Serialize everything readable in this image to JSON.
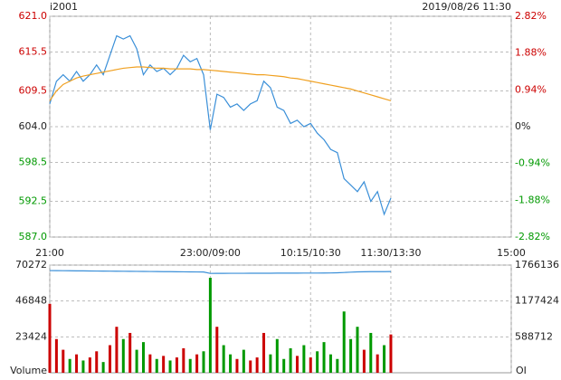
{
  "chart_data": {
    "type": "intraday",
    "title": "i2001",
    "subtitle": "2019/08/26 11:30",
    "x": [
      0,
      5,
      10,
      15,
      20,
      25,
      30,
      35,
      40,
      45,
      50,
      55,
      60,
      65,
      70,
      75,
      80,
      85,
      90,
      95,
      100,
      105,
      110,
      115,
      120,
      125,
      130,
      135,
      140,
      145,
      150,
      155,
      160,
      165,
      170,
      175,
      180,
      185,
      190,
      195,
      200,
      205,
      210,
      215,
      220,
      225,
      230,
      235,
      240,
      245,
      250,
      255
    ],
    "xlim": [
      0,
      345
    ],
    "xticks": [
      {
        "value": 0,
        "label": "21:00"
      },
      {
        "value": 120,
        "label": "23:00/09:00"
      },
      {
        "value": 195,
        "label": "10:15/10:30"
      },
      {
        "value": 255,
        "label": "11:30/13:30"
      },
      {
        "value": 345,
        "label": "15:00"
      }
    ],
    "ylim": [
      587,
      621
    ],
    "yticks": [
      {
        "value": 621,
        "label": "621.0"
      },
      {
        "value": 615.5,
        "label": "615.5"
      },
      {
        "value": 609.5,
        "label": "609.5"
      },
      {
        "value": 604,
        "label": "604.0"
      },
      {
        "value": 598.5,
        "label": "598.5"
      },
      {
        "value": 592.5,
        "label": "592.5"
      },
      {
        "value": 587,
        "label": "587.0"
      }
    ],
    "y2lim": [
      -2.82,
      2.82
    ],
    "y2ticks": [
      {
        "value": 2.82,
        "label": "2.82%"
      },
      {
        "value": 1.88,
        "label": "1.88%"
      },
      {
        "value": 0.94,
        "label": "0.94%"
      },
      {
        "value": 0,
        "label": "0%"
      },
      {
        "value": -0.94,
        "label": "-0.94%"
      },
      {
        "value": -1.88,
        "label": "-1.88%"
      },
      {
        "value": -2.82,
        "label": "-2.82%"
      }
    ],
    "up_color": "#cc0000",
    "down_color": "#009900",
    "grid": true,
    "series": [
      {
        "name": "Price",
        "color": "#3a8fd8",
        "values": [
          607.5,
          611,
          612,
          611,
          612.5,
          611,
          612,
          613.5,
          612,
          615,
          618,
          617.5,
          618,
          616,
          612,
          613.5,
          612.5,
          613,
          612,
          613,
          615,
          614,
          614.5,
          612,
          603.5,
          609,
          608.5,
          607,
          607.5,
          606.5,
          607.5,
          608,
          611,
          610,
          607,
          606.5,
          604.5,
          605,
          604,
          604.5,
          603,
          602,
          600.5,
          600,
          596,
          595,
          594,
          595.5,
          592.5,
          594,
          590.5,
          593
        ]
      },
      {
        "name": "Average",
        "color": "#f0a020",
        "values": [
          608,
          609.5,
          610.5,
          611,
          611.5,
          611.8,
          612,
          612.2,
          612.4,
          612.6,
          612.8,
          613,
          613.1,
          613.2,
          613.2,
          613.1,
          613,
          613,
          612.9,
          612.9,
          612.9,
          612.9,
          612.8,
          612.8,
          612.7,
          612.6,
          612.5,
          612.4,
          612.3,
          612.2,
          612.1,
          612,
          612,
          611.9,
          611.8,
          611.7,
          611.5,
          611.4,
          611.2,
          611,
          610.8,
          610.6,
          610.4,
          610.2,
          610,
          609.8,
          609.5,
          609.2,
          608.9,
          608.6,
          608.3,
          608
        ]
      }
    ],
    "volume": {
      "ylabel": "Volume",
      "ylim": [
        0,
        70272
      ],
      "yticks": [
        70272,
        46848,
        23424
      ],
      "values": [
        45000,
        22000,
        15000,
        9000,
        12000,
        8000,
        10000,
        14000,
        7000,
        18000,
        30000,
        22000,
        26000,
        15000,
        20000,
        12000,
        9000,
        11000,
        8000,
        10000,
        16000,
        9000,
        12000,
        14000,
        62000,
        30000,
        18000,
        12000,
        9000,
        15000,
        8000,
        10000,
        26000,
        12000,
        22000,
        9000,
        16000,
        11000,
        18000,
        10000,
        14000,
        20000,
        12000,
        9000,
        40000,
        22000,
        30000,
        15000,
        26000,
        12000,
        18000,
        25000
      ]
    },
    "open_interest": {
      "ylabel": "OI",
      "color": "#3a8fd8",
      "ylim": [
        0,
        1766136
      ],
      "yticks": [
        1766136,
        1177424,
        588712
      ],
      "values": [
        1676000,
        1675000,
        1674000,
        1673000,
        1672000,
        1671000,
        1670000,
        1669000,
        1668000,
        1667000,
        1666000,
        1665000,
        1664000,
        1663000,
        1662000,
        1661000,
        1660000,
        1659000,
        1658000,
        1657000,
        1656000,
        1655000,
        1654000,
        1653000,
        1630000,
        1631000,
        1631000,
        1632000,
        1632000,
        1632000,
        1633000,
        1633000,
        1633000,
        1633000,
        1634000,
        1634000,
        1634000,
        1634000,
        1635000,
        1635000,
        1635000,
        1636000,
        1637000,
        1640000,
        1645000,
        1650000,
        1655000,
        1657000,
        1658000,
        1659000,
        1659000,
        1660000
      ]
    }
  }
}
